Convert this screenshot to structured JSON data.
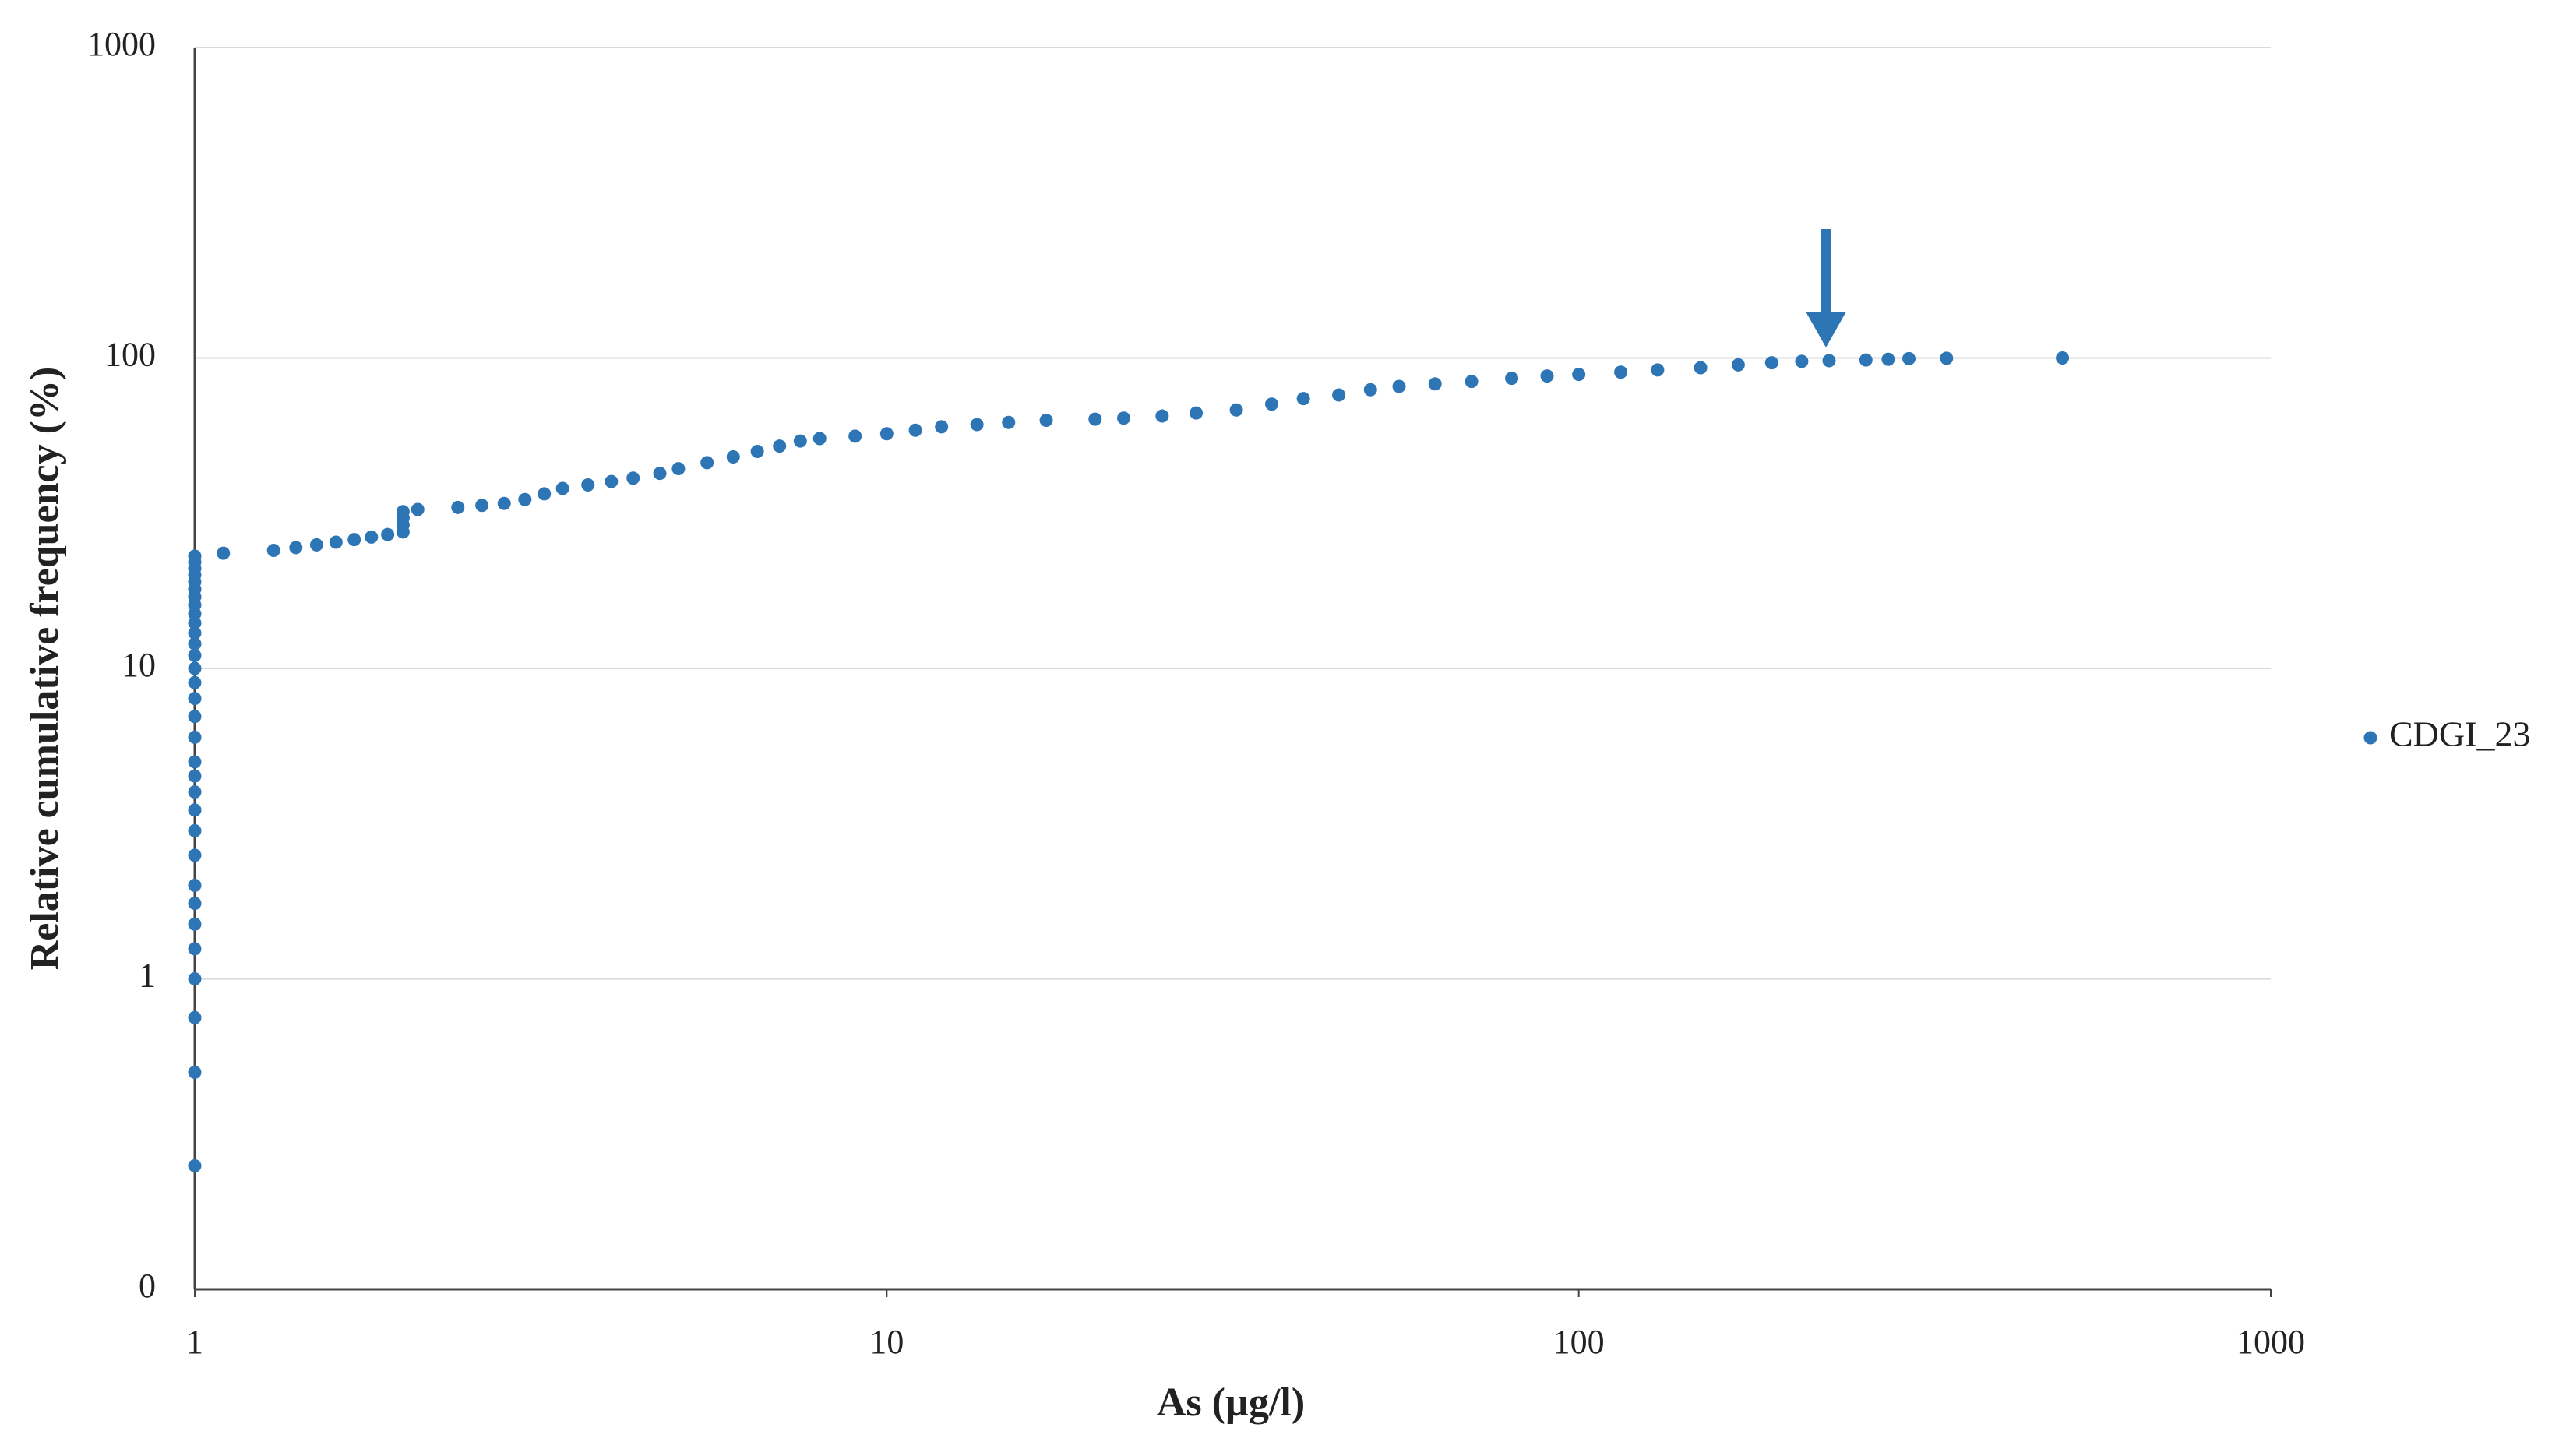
{
  "chart_data": {
    "type": "scatter",
    "x_label": "As (µg/l)",
    "y_label": "Relative cumulative frequency (%)",
    "log_x": true,
    "log_y": true,
    "grid": "y",
    "legend": "right",
    "xlim": [
      1,
      1000
    ],
    "xticks": [
      1,
      10,
      100,
      1000
    ],
    "ylim": [
      0.1,
      1000
    ],
    "yticks": [
      {
        "value": 0.1,
        "label": "0"
      },
      1,
      10,
      100,
      1000
    ],
    "series": [
      {
        "name": "CDGI_23",
        "color": "#2e75b6",
        "x": [
          1,
          1,
          1,
          1,
          1,
          1,
          1,
          1,
          1,
          1,
          1,
          1,
          1,
          1,
          1,
          1,
          1,
          1,
          1,
          1,
          1,
          1,
          1,
          1,
          1,
          1,
          1,
          1,
          1,
          1,
          1,
          1,
          1.1,
          1.3,
          1.4,
          1.5,
          1.6,
          1.7,
          1.8,
          1.9,
          2,
          2,
          2,
          2,
          2.1,
          2.4,
          2.6,
          2.8,
          3,
          3.2,
          3.4,
          3.7,
          4,
          4.3,
          4.7,
          5,
          5.5,
          6,
          6.5,
          7,
          7.5,
          8,
          9,
          10,
          11,
          12,
          13.5,
          15,
          17,
          20,
          22,
          25,
          28,
          32,
          36,
          40,
          45,
          50,
          55,
          62,
          70,
          80,
          90,
          100,
          115,
          130,
          150,
          170,
          190,
          210,
          230,
          260,
          280,
          300,
          340,
          500
        ],
        "values": [
          0.25,
          0.5,
          0.75,
          1,
          1.25,
          1.5,
          1.75,
          2,
          2.5,
          3,
          3.5,
          4,
          4.5,
          5,
          6,
          7,
          8,
          9,
          10,
          11,
          12,
          13,
          14,
          15,
          16,
          17,
          18,
          19,
          20,
          21,
          22,
          23,
          23.5,
          24,
          24.5,
          25,
          25.5,
          26,
          26.5,
          27,
          27.5,
          29,
          30.5,
          32,
          32.5,
          33,
          33.5,
          34,
          35,
          36.5,
          38,
          39,
          40,
          41,
          42.5,
          44,
          46,
          48,
          50,
          52,
          54,
          55,
          56,
          57,
          58.5,
          60,
          61,
          62,
          63,
          63.5,
          64,
          65,
          66.5,
          68,
          71,
          74,
          76,
          79,
          81,
          82.5,
          84,
          86,
          87.5,
          88.5,
          90,
          91.5,
          93,
          95,
          96.5,
          97.5,
          98,
          98.5,
          99,
          99.5,
          99.75,
          100
        ]
      }
    ]
  }
}
